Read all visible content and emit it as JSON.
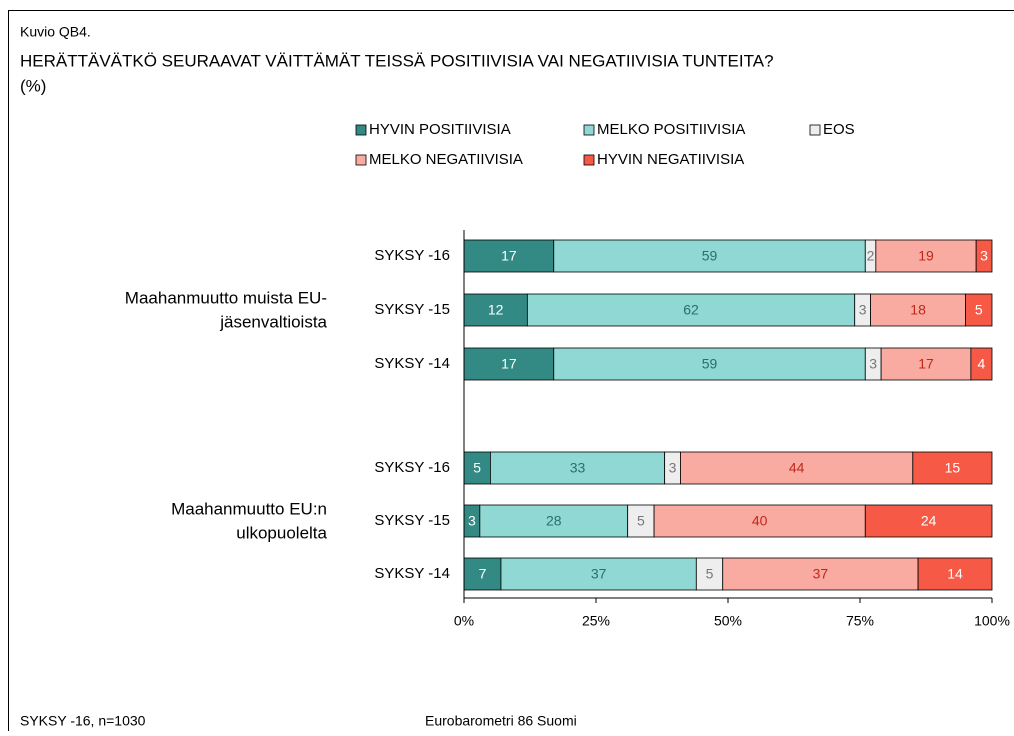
{
  "chart_data": {
    "type": "stacked-barh",
    "kicker": "Kuvio QB4.",
    "title": "HERÄTTÄVÄTKÖ SEURAAVAT VÄITTÄMÄT TEISSÄ POSITIIVISIA VAI NEGATIIVISIA TUNTEITA?",
    "subtitle": "(%)",
    "groups": [
      {
        "label": [
          "Maahanmuutto muista EU-",
          "jäsenvaltioista"
        ],
        "categories": [
          "SYKSY -16",
          "SYKSY -15",
          "SYKSY -14"
        ]
      },
      {
        "label": [
          "Maahanmuutto EU:n",
          "ulkopuolelta"
        ],
        "categories": [
          "SYKSY -16",
          "SYKSY -15",
          "SYKSY -14"
        ]
      }
    ],
    "series": [
      {
        "name": "HYVIN POSITIIVISIA",
        "color": "#338a85",
        "label_color": "#ffffff",
        "values": [
          17,
          12,
          17,
          5,
          3,
          7
        ]
      },
      {
        "name": "MELKO POSITIIVISIA",
        "color": "#8fd8d3",
        "label_color": "#2a6f6c",
        "values": [
          59,
          62,
          59,
          33,
          28,
          37
        ]
      },
      {
        "name": "EOS",
        "color": "#eeeeee",
        "label_color": "#777777",
        "values": [
          2,
          3,
          3,
          3,
          5,
          5
        ]
      },
      {
        "name": "MELKO NEGATIIVISIA",
        "color": "#f9aba1",
        "label_color": "#c0281c",
        "values": [
          19,
          18,
          17,
          44,
          40,
          37
        ]
      },
      {
        "name": "HYVIN NEGATIIVISIA",
        "color": "#f65a47",
        "label_color": "#ffffff",
        "values": [
          3,
          5,
          4,
          15,
          24,
          14
        ]
      }
    ],
    "xlim": [
      0,
      100
    ],
    "xticks": [
      {
        "value": 0,
        "label": "0%"
      },
      {
        "value": 25,
        "label": "25%"
      },
      {
        "value": 50,
        "label": "50%"
      },
      {
        "value": 75,
        "label": "75%"
      },
      {
        "value": 100,
        "label": "100%"
      }
    ],
    "footer_left": "SYKSY -16, n=1030",
    "footer_center": "Eurobarometri 86 Suomi"
  }
}
